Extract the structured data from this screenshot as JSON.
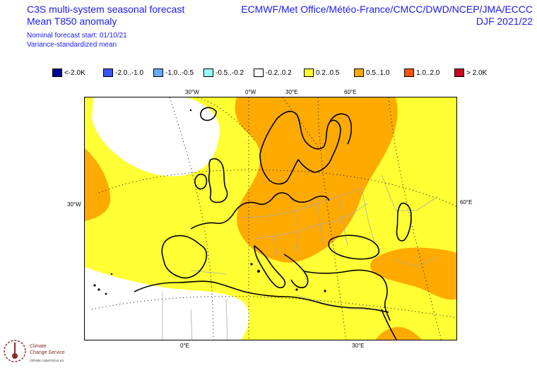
{
  "header": {
    "line1": "C3S multi-system seasonal forecast",
    "line2": "Mean T850 anomaly",
    "line3": "Nominal forecast start: 01/10/21",
    "line4": "Variance-standardized mean",
    "right1": "ECMWF/Met Office/Météo-France/CMCC/DWD/NCEP/JMA/ECCC",
    "right2": "DJF 2021/22"
  },
  "legend": [
    {
      "label": "<-2.0K",
      "color": "#000099"
    },
    {
      "label": "-2.0..-1.0",
      "color": "#3355ff"
    },
    {
      "label": "-1.0..-0.5",
      "color": "#66aaff"
    },
    {
      "label": "-0.5..-0.2",
      "color": "#99ffff"
    },
    {
      "label": "-0.2..0.2",
      "color": "#ffffff"
    },
    {
      "label": "0.2..0.5",
      "color": "#ffff33"
    },
    {
      "label": "0.5..1.0",
      "color": "#ffaa00"
    },
    {
      "label": "1.0..2.0",
      "color": "#ff5500"
    },
    {
      "label": "> 2.0K",
      "color": "#cc0022"
    }
  ],
  "map": {
    "top_labels": [
      "30°W",
      "0°W",
      "30°E",
      "60°E"
    ],
    "left_label": "30°W",
    "right_label": "60°E",
    "bottom_labels": [
      "0°E",
      "30°E"
    ]
  },
  "logo": {
    "name": "Climate Change Service",
    "line1": "Climate",
    "line2": "Change Service",
    "fine": "climate.copernicus.eu"
  },
  "colors": {
    "title": "#1a1aff",
    "anom_low": "#ffffff",
    "anom_mid": "#ffff33",
    "anom_high": "#ffaa00"
  }
}
